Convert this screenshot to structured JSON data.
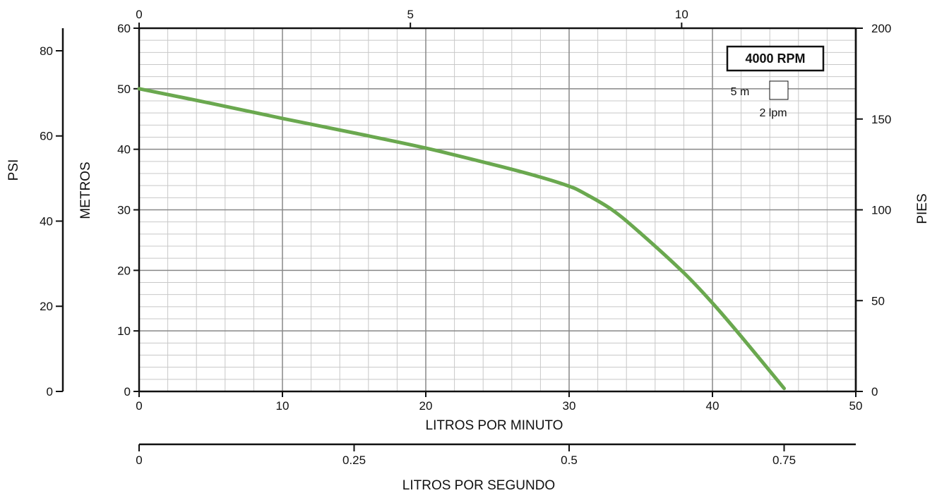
{
  "chart_data": {
    "type": "line",
    "title": "",
    "rpm_label": "4000 RPM",
    "scale_legend": {
      "head": "5 m",
      "flow": "2 lpm"
    },
    "xlabel": "LITROS POR MINUTO",
    "x_secondary_label": "LITROS POR SEGUNDO",
    "x_top_label": "",
    "ylabel": "METROS",
    "y_psi_label": "PSI",
    "y_right_label": "PIES",
    "xlim": [
      0,
      50
    ],
    "ylim": [
      0,
      60
    ],
    "x_ticks": [
      "0",
      "10",
      "20",
      "30",
      "40",
      "50"
    ],
    "y_ticks": [
      "0",
      "10",
      "20",
      "30",
      "40",
      "50",
      "60"
    ],
    "x_top_ticks": [
      "0",
      "5",
      "10"
    ],
    "x_bottom2_ticks": [
      "0",
      "0.25",
      "0.5",
      "0.75"
    ],
    "psi_ticks": [
      "0",
      "20",
      "40",
      "60",
      "80"
    ],
    "feet_ticks": [
      "0",
      "50",
      "100",
      "150",
      "200"
    ],
    "grid": true,
    "line_color": "#6aa84f",
    "series": [
      {
        "x": [
          0,
          5,
          10,
          15,
          20,
          25,
          28,
          30,
          31,
          33,
          35,
          38,
          40,
          42,
          45
        ],
        "y": [
          50,
          47.6,
          45.1,
          42.7,
          40.2,
          37.3,
          35.4,
          33.9,
          32.8,
          30,
          26.1,
          19.6,
          14.6,
          9.1,
          0.5
        ]
      }
    ]
  }
}
